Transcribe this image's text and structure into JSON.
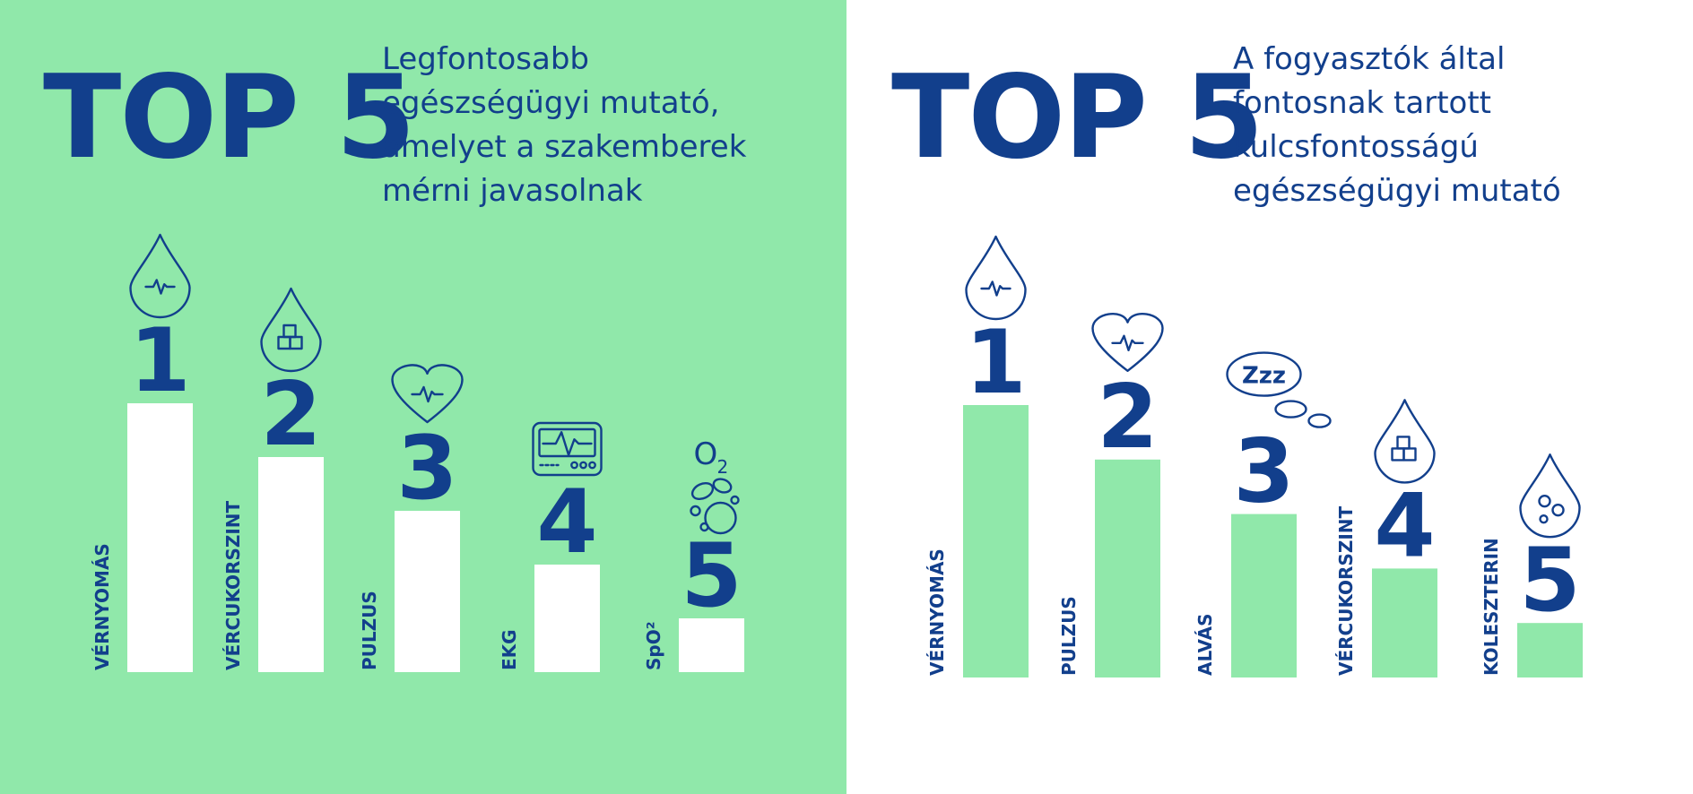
{
  "colors": {
    "left_background": "#90e8aa",
    "right_background": "#ffffff",
    "navy": "#123f8c",
    "left_bar": "#ffffff",
    "right_bar": "#90e8aa"
  },
  "left": {
    "heading": "TOP 5",
    "subtitle": "Legfontosabb\negészségügyi mutató,\namelyet a szakemberek\nmérni javasolnak"
  },
  "right": {
    "heading": "TOP 5",
    "subtitle": "A fogyasztók által\nfontosnak tartott\nkulcsfontosságú\negészségügyi mutató"
  },
  "chart_data": [
    {
      "type": "bar",
      "title": "Legfontosabb egészségügyi mutató, amelyet a szakemberek mérni javasolnak",
      "categories": [
        "VÉRNYOMÁS",
        "VÉRCUKORSZINT",
        "PULZUS",
        "EKG",
        "SpO²"
      ],
      "ranks": [
        "1",
        "2",
        "3",
        "4",
        "5"
      ],
      "values": [
        5,
        4,
        3,
        2,
        1
      ],
      "icons": [
        "drop-pulse-icon",
        "drop-sugar-cubes-icon",
        "heart-pulse-icon",
        "ecg-monitor-icon",
        "o2-bubbles-icon"
      ],
      "ylim": [
        0,
        5
      ],
      "grid": false
    },
    {
      "type": "bar",
      "title": "A fogyasztók által fontosnak tartott kulcsfontosságú egészségügyi mutató",
      "categories": [
        "VÉRNYOMÁS",
        "PULZUS",
        "ALVÁS",
        "VÉRCUKORSZINT",
        "KOLESZTERIN"
      ],
      "ranks": [
        "1",
        "2",
        "3",
        "4",
        "5"
      ],
      "values": [
        5,
        4,
        3,
        2,
        1
      ],
      "icons": [
        "drop-pulse-icon",
        "heart-pulse-icon",
        "sleep-zzz-icon",
        "drop-sugar-cubes-icon",
        "drop-cholesterol-icon"
      ],
      "sleep_icon_text": "Zzz",
      "ylim": [
        0,
        5
      ],
      "grid": false
    }
  ]
}
